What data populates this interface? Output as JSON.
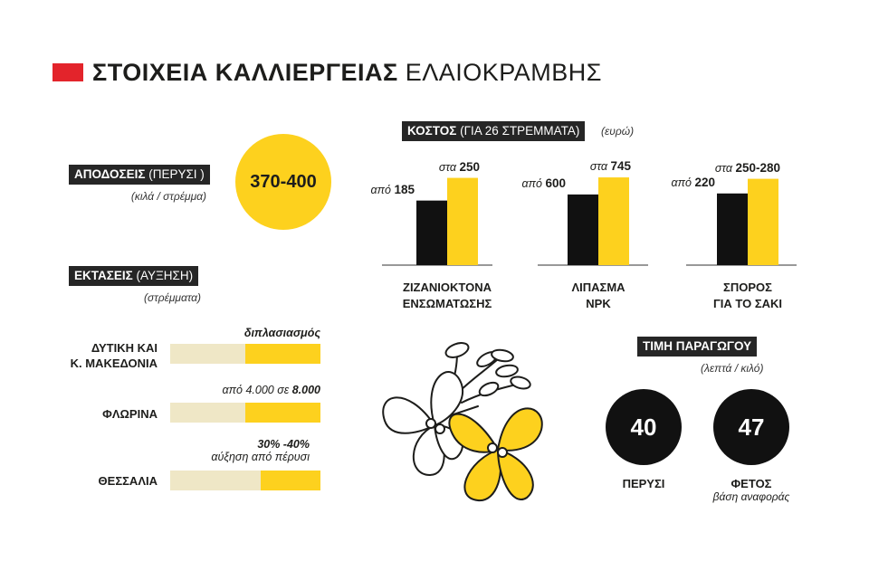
{
  "title": {
    "bold": "ΣΤΟΙΧΕΙΑ ΚΑΛΛΙΕΡΓΕΙΑΣ",
    "light": "ΕΛΑΙΟΚΡΑΜΒΗΣ",
    "accent_color": "#e3242b"
  },
  "yields": {
    "label_bold": "ΑΠΟΔΟΣΕΙΣ",
    "label_light": "(ΠΕΡΥΣΙ )",
    "unit": "(κιλά / στρέμμα)",
    "value": "370-400",
    "color": "#fdd11e"
  },
  "areas": {
    "label_bold": "ΕΚΤΑΣΕΙΣ",
    "label_light": "(ΑΥΞΗΣΗ)",
    "unit": "(στρέμματα)",
    "rows": [
      {
        "name_line1": "ΔΥΤΙΚΗ ΚΑΙ",
        "name_line2": "Κ. ΜΑΚΕΔΟΝΙΑ",
        "note_line1": "διπλασιασμός",
        "note_line2": "",
        "fill_fraction": 0.5
      },
      {
        "name_line1": "ΦΛΩΡΙΝΑ",
        "name_line2": "",
        "note_prefix": "από 4.000 σε ",
        "note_bold": "8.000",
        "fill_fraction": 0.5
      },
      {
        "name_line1": "ΘΕΣΣΑΛΙΑ",
        "name_line2": "",
        "note_line1": "30% -40%",
        "note_line2": "αύξηση από πέρυσι",
        "fill_fraction": 0.4
      }
    ]
  },
  "costs": {
    "label_bold": "ΚΟΣΤΟΣ",
    "label_light": "(ΓΙΑ 26 ΣΤΡΕΜΜΑΤΑ)",
    "unit": "(ευρώ)"
  },
  "chart_data": {
    "type": "bar",
    "categories": [
      "ΖΙΖΑΝΙΟΚΤΟΝΑ ΕΝΣΩΜΑΤΩΣΗΣ",
      "ΛΙΠΑΣΜΑ NPK",
      "ΣΠΟΡΟΣ ΓΙΑ ΤΟ ΣΑΚΙ"
    ],
    "category_lines": [
      [
        "ΖΙΖΑΝΙΟΚΤΟΝΑ",
        "ΕΝΣΩΜΑΤΩΣΗΣ"
      ],
      [
        "ΛΙΠΑΣΜΑ",
        "NPK"
      ],
      [
        "ΣΠΟΡΟΣ",
        "ΓΙΑ ΤΟ ΣΑΚΙ"
      ]
    ],
    "series": [
      {
        "values": [
          185,
          600,
          220
        ],
        "labels": [
          "185",
          "600",
          "220"
        ],
        "prefix": "από",
        "color": "#111111"
      },
      {
        "values": [
          250,
          745,
          265
        ],
        "labels": [
          "250",
          "745",
          "250-280"
        ],
        "prefix": "στα",
        "color": "#fdd11e"
      }
    ],
    "title": "",
    "xlabel": "",
    "ylabel": ""
  },
  "producer_price": {
    "label": "ΤΙΜΗ ΠΑΡΑΓΩΓΟΥ",
    "unit": "(λεπτά / κιλό)",
    "items": [
      {
        "value": "40",
        "label": "ΠΕΡΥΣΙ",
        "sub": ""
      },
      {
        "value": "47",
        "label": "ΦΕΤΟΣ",
        "sub": "βάση αναφοράς"
      }
    ]
  },
  "illustration": {
    "icon": "rapeseed-flower-icon"
  }
}
